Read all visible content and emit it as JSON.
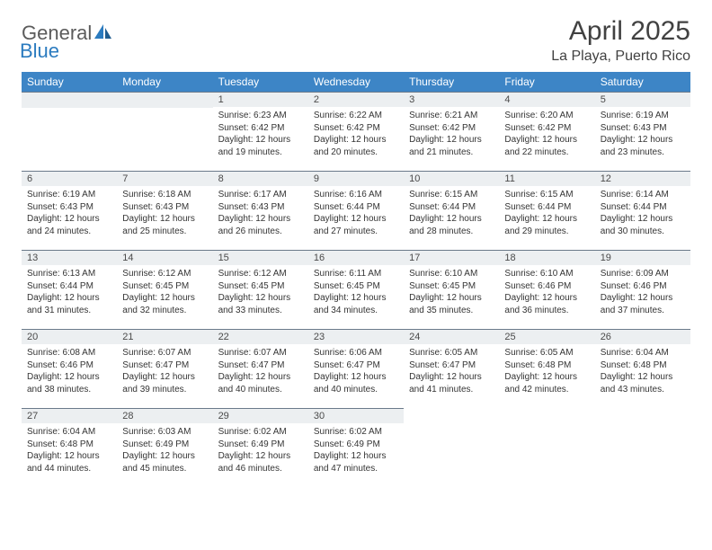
{
  "logo": {
    "text1": "General",
    "text2": "Blue"
  },
  "title": "April 2025",
  "location": "La Playa, Puerto Rico",
  "header_bg": "#3d85c6",
  "header_fg": "#ffffff",
  "daynum_bg": "#eceff1",
  "daynum_border": "#6b7a8a",
  "text_color": "#343434",
  "dayNames": [
    "Sunday",
    "Monday",
    "Tuesday",
    "Wednesday",
    "Thursday",
    "Friday",
    "Saturday"
  ],
  "weeks": [
    [
      null,
      null,
      {
        "n": "1",
        "sr": "Sunrise: 6:23 AM",
        "ss": "Sunset: 6:42 PM",
        "dl": "Daylight: 12 hours and 19 minutes."
      },
      {
        "n": "2",
        "sr": "Sunrise: 6:22 AM",
        "ss": "Sunset: 6:42 PM",
        "dl": "Daylight: 12 hours and 20 minutes."
      },
      {
        "n": "3",
        "sr": "Sunrise: 6:21 AM",
        "ss": "Sunset: 6:42 PM",
        "dl": "Daylight: 12 hours and 21 minutes."
      },
      {
        "n": "4",
        "sr": "Sunrise: 6:20 AM",
        "ss": "Sunset: 6:42 PM",
        "dl": "Daylight: 12 hours and 22 minutes."
      },
      {
        "n": "5",
        "sr": "Sunrise: 6:19 AM",
        "ss": "Sunset: 6:43 PM",
        "dl": "Daylight: 12 hours and 23 minutes."
      }
    ],
    [
      {
        "n": "6",
        "sr": "Sunrise: 6:19 AM",
        "ss": "Sunset: 6:43 PM",
        "dl": "Daylight: 12 hours and 24 minutes."
      },
      {
        "n": "7",
        "sr": "Sunrise: 6:18 AM",
        "ss": "Sunset: 6:43 PM",
        "dl": "Daylight: 12 hours and 25 minutes."
      },
      {
        "n": "8",
        "sr": "Sunrise: 6:17 AM",
        "ss": "Sunset: 6:43 PM",
        "dl": "Daylight: 12 hours and 26 minutes."
      },
      {
        "n": "9",
        "sr": "Sunrise: 6:16 AM",
        "ss": "Sunset: 6:44 PM",
        "dl": "Daylight: 12 hours and 27 minutes."
      },
      {
        "n": "10",
        "sr": "Sunrise: 6:15 AM",
        "ss": "Sunset: 6:44 PM",
        "dl": "Daylight: 12 hours and 28 minutes."
      },
      {
        "n": "11",
        "sr": "Sunrise: 6:15 AM",
        "ss": "Sunset: 6:44 PM",
        "dl": "Daylight: 12 hours and 29 minutes."
      },
      {
        "n": "12",
        "sr": "Sunrise: 6:14 AM",
        "ss": "Sunset: 6:44 PM",
        "dl": "Daylight: 12 hours and 30 minutes."
      }
    ],
    [
      {
        "n": "13",
        "sr": "Sunrise: 6:13 AM",
        "ss": "Sunset: 6:44 PM",
        "dl": "Daylight: 12 hours and 31 minutes."
      },
      {
        "n": "14",
        "sr": "Sunrise: 6:12 AM",
        "ss": "Sunset: 6:45 PM",
        "dl": "Daylight: 12 hours and 32 minutes."
      },
      {
        "n": "15",
        "sr": "Sunrise: 6:12 AM",
        "ss": "Sunset: 6:45 PM",
        "dl": "Daylight: 12 hours and 33 minutes."
      },
      {
        "n": "16",
        "sr": "Sunrise: 6:11 AM",
        "ss": "Sunset: 6:45 PM",
        "dl": "Daylight: 12 hours and 34 minutes."
      },
      {
        "n": "17",
        "sr": "Sunrise: 6:10 AM",
        "ss": "Sunset: 6:45 PM",
        "dl": "Daylight: 12 hours and 35 minutes."
      },
      {
        "n": "18",
        "sr": "Sunrise: 6:10 AM",
        "ss": "Sunset: 6:46 PM",
        "dl": "Daylight: 12 hours and 36 minutes."
      },
      {
        "n": "19",
        "sr": "Sunrise: 6:09 AM",
        "ss": "Sunset: 6:46 PM",
        "dl": "Daylight: 12 hours and 37 minutes."
      }
    ],
    [
      {
        "n": "20",
        "sr": "Sunrise: 6:08 AM",
        "ss": "Sunset: 6:46 PM",
        "dl": "Daylight: 12 hours and 38 minutes."
      },
      {
        "n": "21",
        "sr": "Sunrise: 6:07 AM",
        "ss": "Sunset: 6:47 PM",
        "dl": "Daylight: 12 hours and 39 minutes."
      },
      {
        "n": "22",
        "sr": "Sunrise: 6:07 AM",
        "ss": "Sunset: 6:47 PM",
        "dl": "Daylight: 12 hours and 40 minutes."
      },
      {
        "n": "23",
        "sr": "Sunrise: 6:06 AM",
        "ss": "Sunset: 6:47 PM",
        "dl": "Daylight: 12 hours and 40 minutes."
      },
      {
        "n": "24",
        "sr": "Sunrise: 6:05 AM",
        "ss": "Sunset: 6:47 PM",
        "dl": "Daylight: 12 hours and 41 minutes."
      },
      {
        "n": "25",
        "sr": "Sunrise: 6:05 AM",
        "ss": "Sunset: 6:48 PM",
        "dl": "Daylight: 12 hours and 42 minutes."
      },
      {
        "n": "26",
        "sr": "Sunrise: 6:04 AM",
        "ss": "Sunset: 6:48 PM",
        "dl": "Daylight: 12 hours and 43 minutes."
      }
    ],
    [
      {
        "n": "27",
        "sr": "Sunrise: 6:04 AM",
        "ss": "Sunset: 6:48 PM",
        "dl": "Daylight: 12 hours and 44 minutes."
      },
      {
        "n": "28",
        "sr": "Sunrise: 6:03 AM",
        "ss": "Sunset: 6:49 PM",
        "dl": "Daylight: 12 hours and 45 minutes."
      },
      {
        "n": "29",
        "sr": "Sunrise: 6:02 AM",
        "ss": "Sunset: 6:49 PM",
        "dl": "Daylight: 12 hours and 46 minutes."
      },
      {
        "n": "30",
        "sr": "Sunrise: 6:02 AM",
        "ss": "Sunset: 6:49 PM",
        "dl": "Daylight: 12 hours and 47 minutes."
      },
      null,
      null,
      null
    ]
  ]
}
